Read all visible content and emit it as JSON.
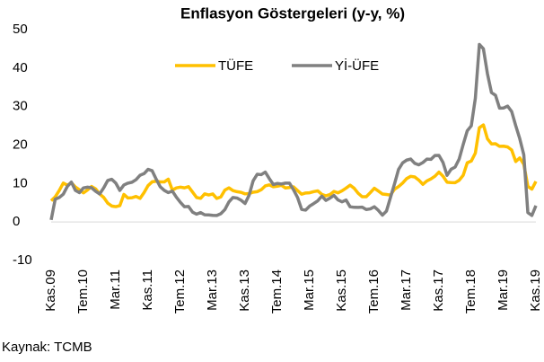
{
  "chart_data": {
    "type": "line",
    "title": "Enflasyon Göstergeleri (y-y, %)",
    "source": "Kaynak: TCMB",
    "categories": [
      "Kas.09",
      null,
      null,
      null,
      null,
      null,
      null,
      null,
      "Tem.10",
      null,
      null,
      null,
      null,
      null,
      null,
      null,
      "Mar.11",
      null,
      null,
      null,
      null,
      null,
      null,
      null,
      "Kas.11",
      null,
      null,
      null,
      null,
      null,
      null,
      null,
      "Tem.12",
      null,
      null,
      null,
      null,
      null,
      null,
      null,
      "Mar.13",
      null,
      null,
      null,
      null,
      null,
      null,
      null,
      "Kas.13",
      null,
      null,
      null,
      null,
      null,
      null,
      null,
      "Tem.14",
      null,
      null,
      null,
      null,
      null,
      null,
      null,
      "Mar.15",
      null,
      null,
      null,
      null,
      null,
      null,
      null,
      "Kas.15",
      null,
      null,
      null,
      null,
      null,
      null,
      null,
      "Tem.16",
      null,
      null,
      null,
      null,
      null,
      null,
      null,
      "Mar.17",
      null,
      null,
      null,
      null,
      null,
      null,
      null,
      "Kas.17",
      null,
      null,
      null,
      null,
      null,
      null,
      null,
      "Tem.18",
      null,
      null,
      null,
      null,
      null,
      null,
      null,
      "Mar.19",
      null,
      null,
      null,
      null,
      null,
      null,
      null,
      "Kas.19"
    ],
    "series": [
      {
        "name": "TÜFE",
        "color": "#FFC000",
        "values": [
          5.53,
          6.53,
          8.19,
          10.13,
          9.56,
          10.19,
          9.1,
          8.37,
          7.58,
          8.33,
          9.24,
          8.62,
          7.29,
          6.4,
          4.9,
          4.16,
          3.99,
          4.26,
          7.17,
          6.24,
          6.31,
          6.65,
          6.15,
          7.66,
          9.48,
          10.45,
          10.61,
          10.43,
          10.43,
          11.14,
          8.28,
          8.87,
          9.07,
          8.88,
          9.19,
          7.8,
          6.37,
          6.16,
          7.31,
          7.03,
          7.29,
          6.13,
          6.51,
          8.3,
          8.88,
          8.17,
          7.88,
          7.71,
          7.32,
          7.4,
          7.75,
          7.89,
          8.39,
          9.38,
          9.66,
          9.16,
          9.32,
          9.54,
          8.86,
          8.96,
          9.15,
          8.17,
          7.24,
          7.55,
          7.61,
          7.91,
          8.09,
          7.2,
          6.81,
          7.14,
          7.95,
          7.58,
          8.1,
          8.81,
          9.58,
          8.78,
          7.46,
          6.57,
          6.58,
          7.64,
          8.79,
          8.05,
          7.28,
          7.16,
          7.0,
          8.53,
          9.22,
          10.13,
          11.29,
          11.87,
          11.72,
          10.9,
          9.79,
          10.68,
          11.2,
          11.9,
          12.98,
          11.92,
          10.35,
          10.26,
          10.23,
          10.85,
          12.15,
          15.39,
          15.85,
          17.9,
          24.52,
          25.24,
          21.62,
          20.3,
          20.35,
          19.67,
          19.71,
          19.5,
          18.71,
          15.72,
          16.65,
          15.01,
          9.26,
          8.55,
          10.56
        ]
      },
      {
        "name": "Yİ-ÜFE",
        "color": "#808080",
        "values": [
          0.55,
          5.93,
          6.36,
          7.24,
          9.25,
          10.37,
          8.21,
          7.64,
          8.87,
          9.06,
          8.91,
          8.0,
          7.29,
          8.87,
          10.8,
          11.11,
          10.1,
          8.21,
          9.63,
          10.1,
          10.34,
          11.0,
          12.15,
          12.58,
          13.7,
          13.33,
          11.13,
          9.15,
          8.22,
          7.65,
          8.03,
          6.44,
          5.09,
          3.97,
          4.03,
          2.57,
          2.05,
          2.45,
          1.88,
          1.84,
          1.72,
          1.7,
          2.17,
          3.23,
          5.23,
          6.38,
          6.23,
          5.67,
          4.83,
          6.97,
          10.72,
          12.4,
          12.31,
          12.98,
          11.28,
          9.75,
          10.02,
          9.88,
          10.11,
          10.1,
          8.36,
          6.36,
          3.28,
          3.1,
          4.16,
          4.8,
          5.52,
          6.73,
          5.62,
          6.21,
          6.92,
          5.74,
          5.25,
          5.71,
          3.96,
          3.82,
          3.8,
          3.87,
          3.25,
          3.41,
          3.96,
          3.03,
          1.78,
          2.84,
          6.41,
          9.94,
          13.69,
          15.36,
          16.09,
          16.37,
          15.26,
          14.87,
          15.45,
          16.34,
          16.28,
          17.28,
          17.3,
          15.47,
          12.14,
          13.71,
          14.28,
          16.37,
          20.16,
          23.71,
          25.0,
          32.13,
          46.15,
          45.01,
          38.54,
          33.64,
          32.93,
          29.59,
          29.64,
          30.12,
          28.71,
          25.04,
          21.66,
          17.48,
          2.45,
          1.7,
          4.26
        ]
      }
    ],
    "ylim": [
      -10,
      50
    ],
    "yticks": [
      -10,
      0,
      10,
      20,
      30,
      40,
      50
    ],
    "legend": "top"
  }
}
